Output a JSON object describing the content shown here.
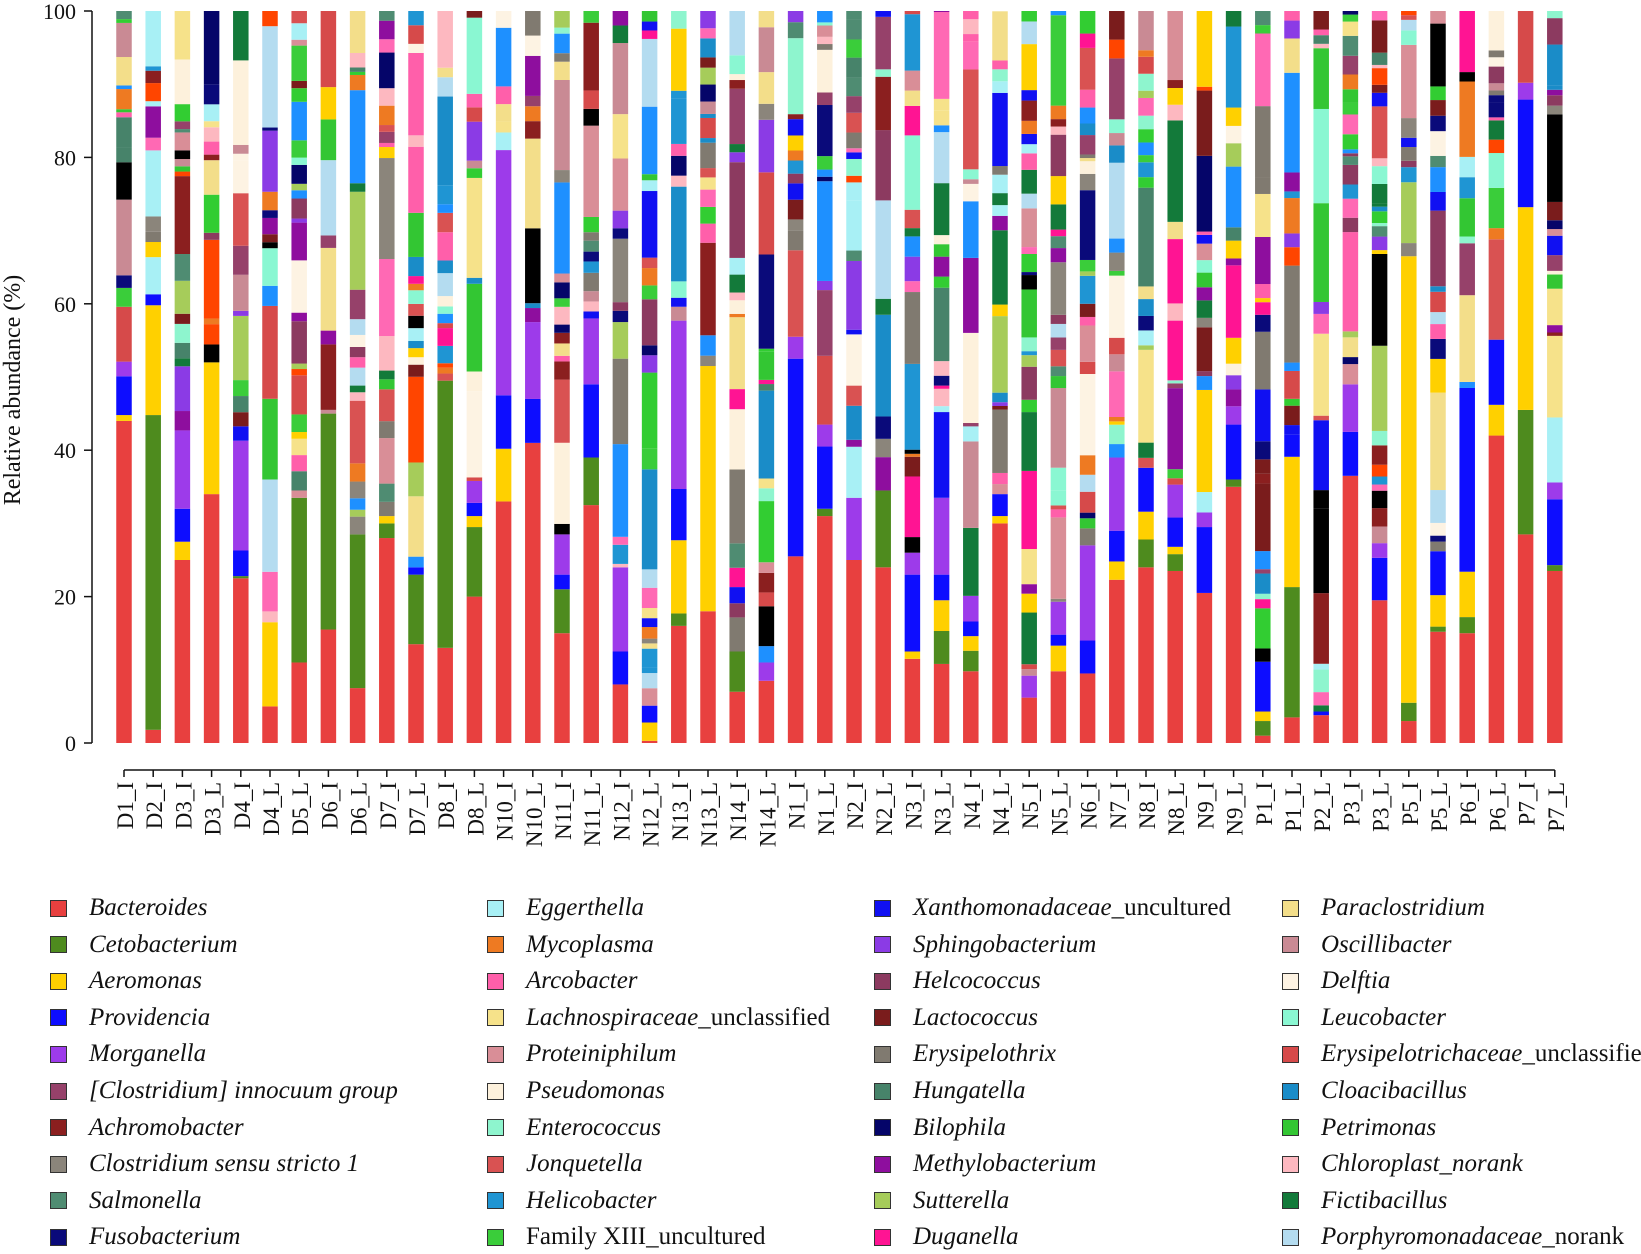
{
  "chart_data": {
    "type": "bar",
    "stacked": true,
    "title": "",
    "xlabel": "",
    "ylabel": "Relative abundance (%)",
    "ylim": [
      0,
      100
    ],
    "yticks": [
      0,
      20,
      40,
      60,
      80,
      100
    ],
    "categories": [
      "D1_I",
      "D2_I",
      "D3_I",
      "D3_L",
      "D4_I",
      "D4_L",
      "D5_L",
      "D6_I",
      "D6_L",
      "D7_I",
      "D7_L",
      "D8_I",
      "D8_L",
      "N10_I",
      "N10_L",
      "N11_I",
      "N11_L",
      "N12_I",
      "N12_L",
      "N13_I",
      "N13_L",
      "N14_I",
      "N14_L",
      "N1_I",
      "N1_L",
      "N2_I",
      "N2_L",
      "N3_I",
      "N3_L",
      "N4_I",
      "N4_L",
      "N5_I",
      "N5_L",
      "N6_I",
      "N7_I",
      "N8_I",
      "N8_L",
      "N9_I",
      "N9_L",
      "P1_I",
      "P1_L",
      "P2_L",
      "P3_I",
      "P3_L",
      "P5_I",
      "P5_L",
      "P6_I",
      "P6_L",
      "P7_I",
      "P7_L"
    ],
    "legend_position": "bottom",
    "series": [
      {
        "name": "Bacteroides",
        "color": "#E8403F",
        "values": [
          44,
          1.8,
          25,
          34,
          22.5,
          5,
          11,
          15.5,
          7.5,
          28,
          13.5,
          13,
          20,
          33,
          41,
          15,
          32.5,
          8,
          0.3,
          16,
          18,
          7,
          8.5,
          25.5,
          31,
          25,
          24,
          11.5,
          10.8,
          9.8,
          30,
          6.2,
          9.8,
          9.5,
          22.3,
          24,
          23.5,
          20.5,
          35,
          1,
          3.5,
          3.8,
          36.5,
          19.5,
          3,
          15.2,
          15,
          42,
          28.5,
          23.5
        ]
      },
      {
        "name": "Cetobacterium",
        "color": "#4E8B1E",
        "values": [
          0,
          43,
          0,
          0,
          0.3,
          0,
          22.5,
          29.5,
          21,
          2,
          9.5,
          36.5,
          9.5,
          0,
          0,
          6,
          6.5,
          0,
          0,
          1.7,
          0,
          5.5,
          0,
          0,
          1,
          0,
          10.5,
          0,
          4.5,
          2.8,
          0,
          0,
          0,
          0,
          0,
          3.8,
          2.3,
          0,
          1,
          2,
          17.8,
          0,
          0,
          0,
          2.5,
          0.7,
          2.2,
          0,
          17,
          0.8
        ]
      },
      {
        "name": "Aeromonas",
        "color": "#FFD000",
        "values": [
          0.8,
          15,
          2.5,
          18,
          0,
          11.5,
          0,
          0,
          0,
          1,
          0,
          0,
          1.5,
          7.2,
          0,
          0,
          0,
          0,
          2.5,
          10,
          33.5,
          0,
          0,
          0,
          0,
          0,
          0,
          1,
          4.2,
          2,
          1,
          0,
          3.5,
          0,
          2.5,
          3.8,
          1,
          0,
          0,
          1.3,
          17.8,
          0,
          0,
          0,
          61,
          4.3,
          6.2,
          4.2,
          27.7,
          0
        ]
      },
      {
        "name": "Providencia",
        "color": "#0D0DFF",
        "values": [
          5.3,
          1.5,
          4.5,
          0,
          3.5,
          0,
          0,
          0,
          0,
          0,
          1,
          0,
          1.8,
          7.3,
          6,
          2,
          10,
          4.5,
          2.3,
          7,
          0,
          0,
          0,
          27,
          8.5,
          0,
          0,
          10.5,
          3.5,
          2,
          3,
          0,
          1.5,
          4.5,
          4.2,
          6,
          4,
          9,
          7.5,
          6.8,
          3,
          0.5,
          6,
          5.8,
          0,
          6,
          25.1,
          8.9,
          14.7,
          9
        ]
      },
      {
        "name": "Morganella",
        "color": "#9D3BEA",
        "values": [
          2,
          0,
          10.7,
          0,
          15,
          0,
          0,
          0,
          0,
          0,
          0,
          0,
          3,
          33.5,
          10.5,
          5.5,
          9,
          11.5,
          0,
          23,
          0,
          0,
          2.5,
          3,
          3,
          8.5,
          0,
          3,
          10.5,
          3.5,
          0,
          3,
          4.5,
          13,
          10,
          0,
          4.5,
          2,
          2.5,
          0,
          0,
          0,
          6.5,
          2,
          0,
          0,
          0,
          0,
          2.3,
          2.3
        ]
      }
    ]
  },
  "x_labels": [
    "D1_I",
    "D2_I",
    "D3_I",
    "D3_L",
    "D4_I",
    "D4_L",
    "D5_L",
    "D6_I",
    "D6_L",
    "D7_I",
    "D7_L",
    "D8_I",
    "D8_L",
    "N10_I",
    "N10_L",
    "N11_I",
    "N11_L",
    "N12_I",
    "N12_L",
    "N13_I",
    "N13_L",
    "N14_I",
    "N14_L",
    "N1_I",
    "N1_L",
    "N2_I",
    "N2_L",
    "N3_I",
    "N3_L",
    "N4_I",
    "N4_L",
    "N5_I",
    "N5_L",
    "N6_I",
    "N7_I",
    "N8_I",
    "N8_L",
    "N9_I",
    "N9_L",
    "P1_I",
    "P1_L",
    "P2_L",
    "P3_I",
    "P3_L",
    "P5_I",
    "P5_L",
    "P6_I",
    "P6_L",
    "P7_I",
    "P7_L"
  ],
  "legend": [
    {
      "label": "Bacteroides",
      "suffix": "",
      "color": "#E8403F"
    },
    {
      "label": "Cetobacterium",
      "suffix": "",
      "color": "#4E8B1E"
    },
    {
      "label": "Aeromonas",
      "suffix": "",
      "color": "#FFD000"
    },
    {
      "label": "Providencia",
      "suffix": "",
      "color": "#0D0DFF"
    },
    {
      "label": "Morganella",
      "suffix": "",
      "color": "#9D3BEA"
    },
    {
      "label": "[Clostridium] innocuum group",
      "suffix": "",
      "color": "#96416A"
    },
    {
      "label": "Achromobacter",
      "suffix": "",
      "color": "#8B1F1F"
    },
    {
      "label": "Clostridium sensu stricto 1",
      "suffix": "",
      "color": "#8B857B"
    },
    {
      "label": "Salmonella",
      "suffix": "",
      "color": "#4F8C72"
    },
    {
      "label": "Fusobacterium",
      "suffix": "",
      "color": "#0A0A7A"
    },
    {
      "label": "Eggerthella",
      "suffix": "",
      "color": "#A8F0F5"
    },
    {
      "label": "Mycoplasma",
      "suffix": "",
      "color": "#EE7A22"
    },
    {
      "label": "Arcobacter",
      "suffix": "",
      "color": "#FF5FAA"
    },
    {
      "label": "Lachnospiraceae",
      "suffix": "_unclassified",
      "color": "#F6E28A"
    },
    {
      "label": "Proteiniphilum",
      "suffix": "",
      "color": "#D98E97"
    },
    {
      "label": "Pseudomonas",
      "suffix": "",
      "color": "#FDF1DC"
    },
    {
      "label": "Enterococcus",
      "suffix": "",
      "color": "#8EF5CE"
    },
    {
      "label": "Jonquetella",
      "suffix": "",
      "color": "#D95252"
    },
    {
      "label": "Helicobacter",
      "suffix": "",
      "color": "#1F95D3"
    },
    {
      "label": "Family XIII",
      "suffix": "_uncultured",
      "color": "#3ACD3A"
    },
    {
      "label": "Xanthomonadaceae",
      "suffix": "_uncultured",
      "color": "#1010F2"
    },
    {
      "label": "Sphingobacterium",
      "suffix": "",
      "color": "#8B3BE5"
    },
    {
      "label": "Helcococcus",
      "suffix": "",
      "color": "#8C3A60"
    },
    {
      "label": "Lactococcus",
      "suffix": "",
      "color": "#7A1C1C"
    },
    {
      "label": "Erysipelothrix",
      "suffix": "",
      "color": "#807A70"
    },
    {
      "label": "Hungatella",
      "suffix": "",
      "color": "#47836A"
    },
    {
      "label": "Bilophila",
      "suffix": "",
      "color": "#050569"
    },
    {
      "label": "Methylobacterium",
      "suffix": "",
      "color": "#8E0E9E"
    },
    {
      "label": "Sutterella",
      "suffix": "",
      "color": "#A6CC5A"
    },
    {
      "label": "Duganella",
      "suffix": "",
      "color": "#FF1493"
    },
    {
      "label": "Paraclostridium",
      "suffix": "",
      "color": "#F3DE8A"
    },
    {
      "label": "Oscillibacter",
      "suffix": "",
      "color": "#C98A94"
    },
    {
      "label": "Delftia",
      "suffix": "",
      "color": "#FDF3E3"
    },
    {
      "label": "Leucobacter",
      "suffix": "",
      "color": "#8AF7D2"
    },
    {
      "label": "Erysipelotrichaceae",
      "suffix": "_unclassified",
      "color": "#D64A4A"
    },
    {
      "label": "Cloacibacillus",
      "suffix": "",
      "color": "#1A8CC8"
    },
    {
      "label": "Petrimonas",
      "suffix": "",
      "color": "#33C633"
    },
    {
      "label": "Chloroplast_norank",
      "suffix": "",
      "color": "#FDB8C0"
    },
    {
      "label": "Fictibacillus",
      "suffix": "",
      "color": "#137A3A"
    },
    {
      "label": "Porphyromonadaceae",
      "suffix": "_norank",
      "color": "#B4DCF0"
    }
  ]
}
